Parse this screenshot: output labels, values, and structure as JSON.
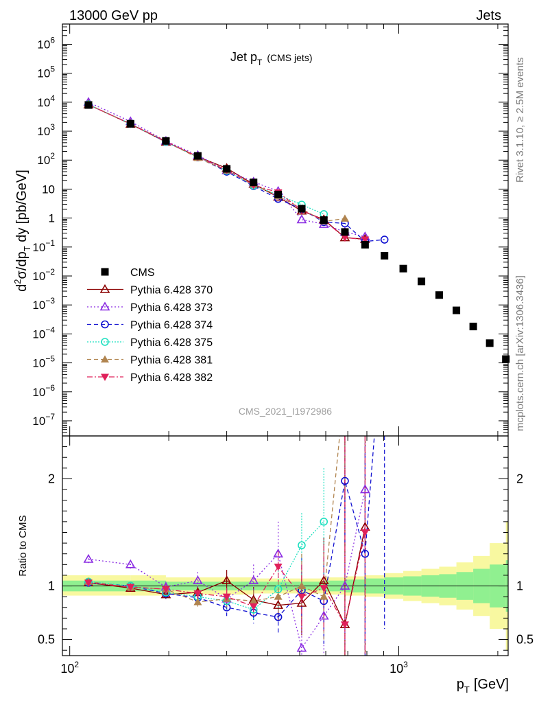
{
  "header": {
    "left": "13000 GeV pp",
    "right": "Jets",
    "plot_title": "Jet p",
    "plot_title_sub": "T",
    "plot_title_tail": "(CMS jets)",
    "analysis_id": "CMS_2021_I1972986",
    "side_rivet": "Rivet 3.1.10, ≥ 2.5M events",
    "side_mcplots": "mcplots.cern.ch [arXiv:1306.3436]"
  },
  "axes": {
    "ylabel_main": "d²σ/dp_T dy [pb/GeV]",
    "ylabel_ratio": "Ratio to CMS",
    "xlabel": "p",
    "xlabel_sub": "T",
    "xlabel_unit": "[GeV]"
  },
  "colors": {
    "CMS": "#000000",
    "370": "#8b0000",
    "373": "#8a2be2",
    "374": "#1010d0",
    "375": "#1ee0c0",
    "381": "#b0844f",
    "382": "#e0205a",
    "band_inner": "#90f090",
    "band_outer": "#f8f8a0"
  },
  "chart_data": {
    "type": "scatter",
    "xscale": "log",
    "yscale": "log",
    "xlim": [
      95,
      2150
    ],
    "ylim": [
      3e-08,
      5000000.0
    ],
    "ratio_ylim": [
      0.35,
      2.4
    ],
    "x_ticks": [
      {
        "v": 100,
        "label": "10",
        "sup": "2"
      },
      {
        "v": 1000,
        "label": "10",
        "sup": "3"
      }
    ],
    "y_ticks": [
      {
        "v": 1000000.0,
        "label": "10",
        "sup": "6"
      },
      {
        "v": 100000.0,
        "label": "10",
        "sup": "5"
      },
      {
        "v": 10000.0,
        "label": "10",
        "sup": "4"
      },
      {
        "v": 1000.0,
        "label": "10",
        "sup": "3"
      },
      {
        "v": 100,
        "label": "10",
        "sup": "2"
      },
      {
        "v": 10,
        "label": "10",
        "sup": ""
      },
      {
        "v": 1,
        "label": "1",
        "sup": ""
      },
      {
        "v": 0.1,
        "label": "10",
        "sup": "−1"
      },
      {
        "v": 0.01,
        "label": "10",
        "sup": "−2"
      },
      {
        "v": 0.001,
        "label": "10",
        "sup": "−3"
      },
      {
        "v": 0.0001,
        "label": "10",
        "sup": "−4"
      },
      {
        "v": 1e-05,
        "label": "10",
        "sup": "−5"
      },
      {
        "v": 1e-06,
        "label": "10",
        "sup": "−6"
      },
      {
        "v": 1e-07,
        "label": "10",
        "sup": "−7"
      }
    ],
    "ratio_ticks": [
      {
        "v": 0.5,
        "label": "0.5"
      },
      {
        "v": 1,
        "label": "1"
      },
      {
        "v": 2,
        "label": "2"
      }
    ],
    "legend_position": "center-left",
    "data": {
      "name": "CMS",
      "x": [
        114,
        153,
        196,
        245,
        300,
        362,
        430,
        507,
        592,
        686,
        790,
        905,
        1032,
        1172,
        1327,
        1497,
        1684,
        1890,
        2116
      ],
      "y": [
        8000,
        1800,
        460,
        140,
        50,
        17,
        6.5,
        2.1,
        0.85,
        0.33,
        0.12,
        0.05,
        0.018,
        0.0065,
        0.0022,
        0.00065,
        0.00018,
        4.8e-05,
        1.35e-05
      ]
    },
    "band_edges": [
      95,
      114,
      153,
      196,
      245,
      300,
      362,
      430,
      507,
      592,
      686,
      790,
      905,
      1032,
      1172,
      1327,
      1497,
      1684,
      1890,
      2116,
      2150
    ],
    "band_inner": [
      [
        0.95,
        1.05
      ],
      [
        0.95,
        1.05
      ],
      [
        0.95,
        1.05
      ],
      [
        0.96,
        1.04
      ],
      [
        0.96,
        1.04
      ],
      [
        0.96,
        1.04
      ],
      [
        0.96,
        1.04
      ],
      [
        0.96,
        1.04
      ],
      [
        0.96,
        1.04
      ],
      [
        0.95,
        1.05
      ],
      [
        0.94,
        1.06
      ],
      [
        0.93,
        1.07
      ],
      [
        0.92,
        1.08
      ],
      [
        0.91,
        1.09
      ],
      [
        0.9,
        1.1
      ],
      [
        0.89,
        1.11
      ],
      [
        0.87,
        1.13
      ],
      [
        0.84,
        1.16
      ],
      [
        0.8,
        1.2
      ],
      [
        0.76,
        1.24
      ]
    ],
    "band_outer": [
      [
        0.91,
        1.1
      ],
      [
        0.91,
        1.1
      ],
      [
        0.91,
        1.1
      ],
      [
        0.92,
        1.08
      ],
      [
        0.92,
        1.08
      ],
      [
        0.92,
        1.08
      ],
      [
        0.93,
        1.07
      ],
      [
        0.93,
        1.07
      ],
      [
        0.93,
        1.07
      ],
      [
        0.92,
        1.08
      ],
      [
        0.91,
        1.09
      ],
      [
        0.9,
        1.1
      ],
      [
        0.88,
        1.12
      ],
      [
        0.86,
        1.14
      ],
      [
        0.84,
        1.16
      ],
      [
        0.82,
        1.18
      ],
      [
        0.78,
        1.22
      ],
      [
        0.72,
        1.28
      ],
      [
        0.6,
        1.4
      ],
      [
        0.4,
        1.6
      ]
    ],
    "series": [
      {
        "name": "Pythia 6.428 370",
        "id": "370",
        "marker": "tri-open",
        "dash": "",
        "x": [
          114,
          153,
          196,
          245,
          300,
          362,
          430,
          507,
          592,
          686,
          790
        ],
        "ratio": [
          1.03,
          0.98,
          0.92,
          0.94,
          1.05,
          0.87,
          0.82,
          0.84,
          1.05,
          0.64,
          1.55
        ],
        "err": [
          0.03,
          0.03,
          0.04,
          0.06,
          0.1,
          0.12,
          0.15,
          0.3,
          0.4,
          2.0,
          2.0
        ]
      },
      {
        "name": "Pythia 6.428 373",
        "id": "373",
        "marker": "tri-open",
        "dash": "2,3",
        "x": [
          114,
          153,
          196,
          245,
          300,
          362,
          430,
          507,
          592,
          686,
          790
        ],
        "ratio": [
          1.25,
          1.2,
          0.99,
          1.05,
          0.88,
          1.05,
          1.3,
          0.42,
          0.72,
          1.0,
          1.9
        ],
        "err": [
          0.04,
          0.04,
          0.05,
          0.08,
          0.1,
          0.15,
          0.3,
          0.4,
          0.5,
          2.0,
          2.0
        ]
      },
      {
        "name": "Pythia 6.428 374",
        "id": "374",
        "marker": "circ-open",
        "dash": "6,4",
        "x": [
          114,
          153,
          196,
          245,
          300,
          362,
          430,
          507,
          592,
          686,
          790,
          905
        ],
        "ratio": [
          1.03,
          1.0,
          0.93,
          0.89,
          0.8,
          0.75,
          0.71,
          0.96,
          0.86,
          1.98,
          1.3,
          3.6
        ],
        "err": [
          0.03,
          0.03,
          0.05,
          0.06,
          0.08,
          0.1,
          0.15,
          0.3,
          0.4,
          0.6,
          1.0,
          3.0
        ]
      },
      {
        "name": "Pythia 6.428 375",
        "id": "375",
        "marker": "circ-open",
        "dash": "2,2",
        "x": [
          114,
          153,
          196,
          245,
          300,
          362,
          430,
          507,
          592
        ],
        "ratio": [
          1.04,
          1.0,
          0.94,
          0.9,
          0.86,
          0.78,
          0.97,
          1.38,
          1.6
        ],
        "err": [
          0.03,
          0.03,
          0.05,
          0.06,
          0.08,
          0.1,
          0.2,
          0.3,
          0.5
        ]
      },
      {
        "name": "Pythia 6.428 381",
        "id": "381",
        "marker": "tri-full",
        "dash": "6,4",
        "x": [
          114,
          153,
          196,
          245,
          300,
          362,
          430,
          507,
          592,
          686
        ],
        "ratio": [
          1.04,
          0.99,
          0.97,
          0.85,
          0.88,
          0.86,
          0.9,
          1.0,
          0.9,
          2.9
        ],
        "err": [
          0.03,
          0.03,
          0.05,
          0.06,
          0.08,
          0.1,
          0.15,
          0.3,
          0.4,
          1.0
        ]
      },
      {
        "name": "Pythia 6.428 382",
        "id": "382",
        "marker": "tri-down",
        "dash": "8,3,2,3",
        "x": [
          114,
          153,
          196,
          245,
          300,
          362,
          430,
          507,
          592,
          686,
          790
        ],
        "ratio": [
          1.03,
          0.99,
          0.97,
          0.93,
          0.9,
          0.81,
          1.18,
          0.9,
          0.98,
          0.64,
          1.5
        ],
        "err": [
          0.03,
          0.03,
          0.05,
          0.06,
          0.08,
          0.1,
          0.15,
          0.3,
          0.4,
          2.0,
          2.0
        ]
      }
    ]
  }
}
